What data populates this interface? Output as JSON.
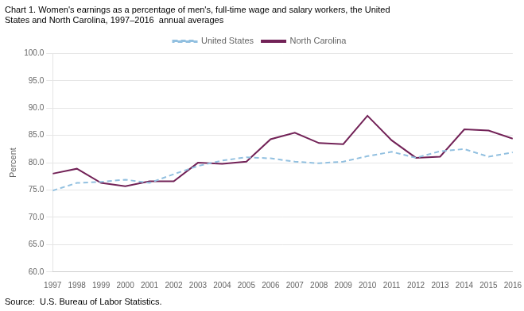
{
  "chart_data": {
    "type": "line",
    "title": [
      "Chart 1. Women's earnings as a percentage of men's, full-time wage and salary workers, the United",
      "States and North Carolina, 1997–2016  annual averages"
    ],
    "source": "Source:  U.S. Bureau of Labor Statistics.",
    "y_label": "Percent",
    "x": [
      1997,
      1998,
      1999,
      2000,
      2001,
      2002,
      2003,
      2004,
      2005,
      2006,
      2007,
      2008,
      2009,
      2010,
      2011,
      2012,
      2013,
      2014,
      2015,
      2016
    ],
    "series": [
      {
        "name": "United States",
        "color": "#92c0e0",
        "line_style": "dashed",
        "values": [
          74.9,
          76.3,
          76.5,
          76.9,
          76.3,
          77.9,
          79.4,
          80.4,
          81.0,
          80.8,
          80.2,
          79.9,
          80.2,
          81.2,
          82.0,
          80.9,
          82.1,
          82.5,
          81.1,
          81.9
        ]
      },
      {
        "name": "North Carolina",
        "color": "#722257",
        "line_style": "solid",
        "values": [
          78.0,
          78.9,
          76.3,
          75.7,
          76.6,
          76.6,
          80.0,
          79.8,
          80.2,
          84.3,
          85.5,
          83.6,
          83.4,
          88.6,
          84.1,
          80.9,
          81.1,
          86.1,
          85.9,
          84.4
        ]
      }
    ],
    "xlim": [
      1997,
      2016
    ],
    "xticks": [
      1997,
      1998,
      1999,
      2000,
      2001,
      2002,
      2003,
      2004,
      2005,
      2006,
      2007,
      2008,
      2009,
      2010,
      2011,
      2012,
      2013,
      2014,
      2015,
      2016
    ],
    "ylim": [
      60,
      100
    ],
    "yticks": [
      {
        "value": 60,
        "label": "60.0"
      },
      {
        "value": 65,
        "label": "65.0"
      },
      {
        "value": 70,
        "label": "70.0"
      },
      {
        "value": 75,
        "label": "75.0"
      },
      {
        "value": 80,
        "label": "80.0"
      },
      {
        "value": 85,
        "label": "85.0"
      },
      {
        "value": 90,
        "label": "90.0"
      },
      {
        "value": 95,
        "label": "95.0"
      },
      {
        "value": 100,
        "label": "100.0"
      }
    ],
    "grid": "y",
    "legend": "top"
  }
}
